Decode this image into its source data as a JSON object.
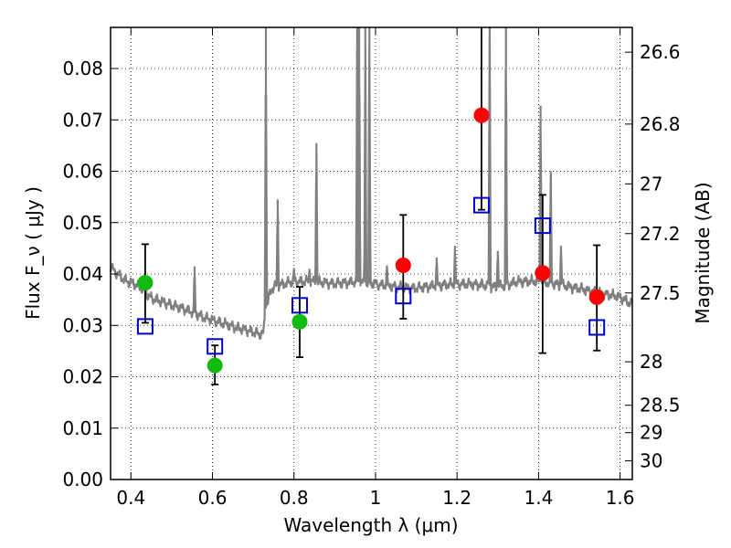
{
  "chart_data": {
    "type": "scatter",
    "xlabel": "Wavelength  λ (μm)",
    "ylabel": "Flux  F_ν  ( μJy )",
    "ylabel_right": "Magnitude (AB)",
    "xlim": [
      0.35,
      1.63
    ],
    "ylim": [
      0,
      0.088
    ],
    "grid": true,
    "x_ticks": [
      0.4,
      0.6,
      0.8,
      1.0,
      1.2,
      1.4,
      1.6
    ],
    "x_tick_labels": [
      "0.4",
      "0.6",
      "0.8",
      "1",
      "1.2",
      "1.4",
      "1.6"
    ],
    "y_ticks": [
      0,
      0.01,
      0.02,
      0.03,
      0.04,
      0.05,
      0.06,
      0.07,
      0.08
    ],
    "y_tick_labels": [
      "0.00",
      "0.01",
      "0.02",
      "0.03",
      "0.04",
      "0.05",
      "0.06",
      "0.07",
      "0.08"
    ],
    "right_ticks": [
      {
        "label": "26.6",
        "value": 26.6
      },
      {
        "label": "26.8",
        "value": 26.8
      },
      {
        "label": "27",
        "value": 27.0
      },
      {
        "label": "27.2",
        "value": 27.2
      },
      {
        "label": "27.5",
        "value": 27.5
      },
      {
        "label": "28",
        "value": 28.0
      },
      {
        "label": "28.5",
        "value": 28.5
      },
      {
        "label": "29",
        "value": 29.0
      },
      {
        "label": "30",
        "value": 30.0
      }
    ],
    "series": [
      {
        "marker": "circle",
        "color": "#11bb11",
        "points": [
          {
            "x": 0.435,
            "y": 0.0383
          },
          {
            "x": 0.606,
            "y": 0.0222
          },
          {
            "x": 0.814,
            "y": 0.0307
          }
        ]
      },
      {
        "marker": "circle",
        "color": "#ff0000",
        "points": [
          {
            "x": 1.068,
            "y": 0.0417
          },
          {
            "x": 1.26,
            "y": 0.0709
          },
          {
            "x": 1.41,
            "y": 0.0402
          },
          {
            "x": 1.543,
            "y": 0.0355
          }
        ]
      },
      {
        "marker": "square-open",
        "color": "#0000cc",
        "points": [
          {
            "x": 0.435,
            "y": 0.0298,
            "ylo": 0.0305,
            "yhi": 0.0458
          },
          {
            "x": 0.606,
            "y": 0.0259,
            "ylo": 0.0185,
            "yhi": 0.0261
          },
          {
            "x": 0.814,
            "y": 0.0339,
            "ylo": 0.0238,
            "yhi": 0.0375
          },
          {
            "x": 1.068,
            "y": 0.0357,
            "ylo": 0.0313,
            "yhi": 0.0515
          },
          {
            "x": 1.26,
            "y": 0.0534,
            "ylo": 0.0525,
            "yhi": 0.088
          },
          {
            "x": 1.41,
            "y": 0.0494,
            "ylo": 0.0246,
            "yhi": 0.0554
          },
          {
            "x": 1.543,
            "y": 0.0296,
            "ylo": 0.0251,
            "yhi": 0.0456
          }
        ]
      }
    ],
    "model_spectrum": {
      "color": "#808080",
      "continuum": [
        [
          0.35,
          0.0415
        ],
        [
          0.36,
          0.0405
        ],
        [
          0.375,
          0.0395
        ],
        [
          0.39,
          0.0385
        ],
        [
          0.41,
          0.038
        ],
        [
          0.43,
          0.037
        ],
        [
          0.445,
          0.0355
        ],
        [
          0.46,
          0.035
        ],
        [
          0.5,
          0.034
        ],
        [
          0.54,
          0.033
        ],
        [
          0.58,
          0.0315
        ],
        [
          0.62,
          0.0305
        ],
        [
          0.66,
          0.0295
        ],
        [
          0.7,
          0.0288
        ],
        [
          0.715,
          0.0283
        ],
        [
          0.725,
          0.0285
        ],
        [
          0.73,
          0.033
        ],
        [
          0.745,
          0.0372
        ],
        [
          0.76,
          0.0378
        ],
        [
          0.8,
          0.0385
        ],
        [
          0.85,
          0.0385
        ],
        [
          0.9,
          0.0382
        ],
        [
          0.95,
          0.0385
        ],
        [
          1.0,
          0.038
        ],
        [
          1.05,
          0.0375
        ],
        [
          1.1,
          0.0373
        ],
        [
          1.15,
          0.0378
        ],
        [
          1.2,
          0.038
        ],
        [
          1.25,
          0.038
        ],
        [
          1.3,
          0.0375
        ],
        [
          1.35,
          0.0385
        ],
        [
          1.4,
          0.0385
        ],
        [
          1.45,
          0.038
        ],
        [
          1.5,
          0.0372
        ],
        [
          1.55,
          0.0362
        ],
        [
          1.6,
          0.0355
        ],
        [
          1.63,
          0.034
        ]
      ],
      "lines": [
        {
          "x": 0.556,
          "peak": 0.0415
        },
        {
          "x": 0.731,
          "peak": 0.088
        },
        {
          "x": 0.76,
          "peak": 0.0545
        },
        {
          "x": 0.8,
          "peak": 0.041
        },
        {
          "x": 0.838,
          "peak": 0.041
        },
        {
          "x": 0.855,
          "peak": 0.0655
        },
        {
          "x": 0.955,
          "peak": 0.088
        },
        {
          "x": 0.96,
          "peak": 0.088
        },
        {
          "x": 0.975,
          "peak": 0.088
        },
        {
          "x": 0.985,
          "peak": 0.088
        },
        {
          "x": 1.028,
          "peak": 0.0415
        },
        {
          "x": 1.15,
          "peak": 0.0432
        },
        {
          "x": 1.195,
          "peak": 0.0455
        },
        {
          "x": 1.28,
          "peak": 0.088
        },
        {
          "x": 1.3,
          "peak": 0.0445
        },
        {
          "x": 1.32,
          "peak": 0.088
        },
        {
          "x": 1.405,
          "peak": 0.0728
        },
        {
          "x": 1.43,
          "peak": 0.0598
        },
        {
          "x": 1.455,
          "peak": 0.0455
        }
      ]
    }
  }
}
